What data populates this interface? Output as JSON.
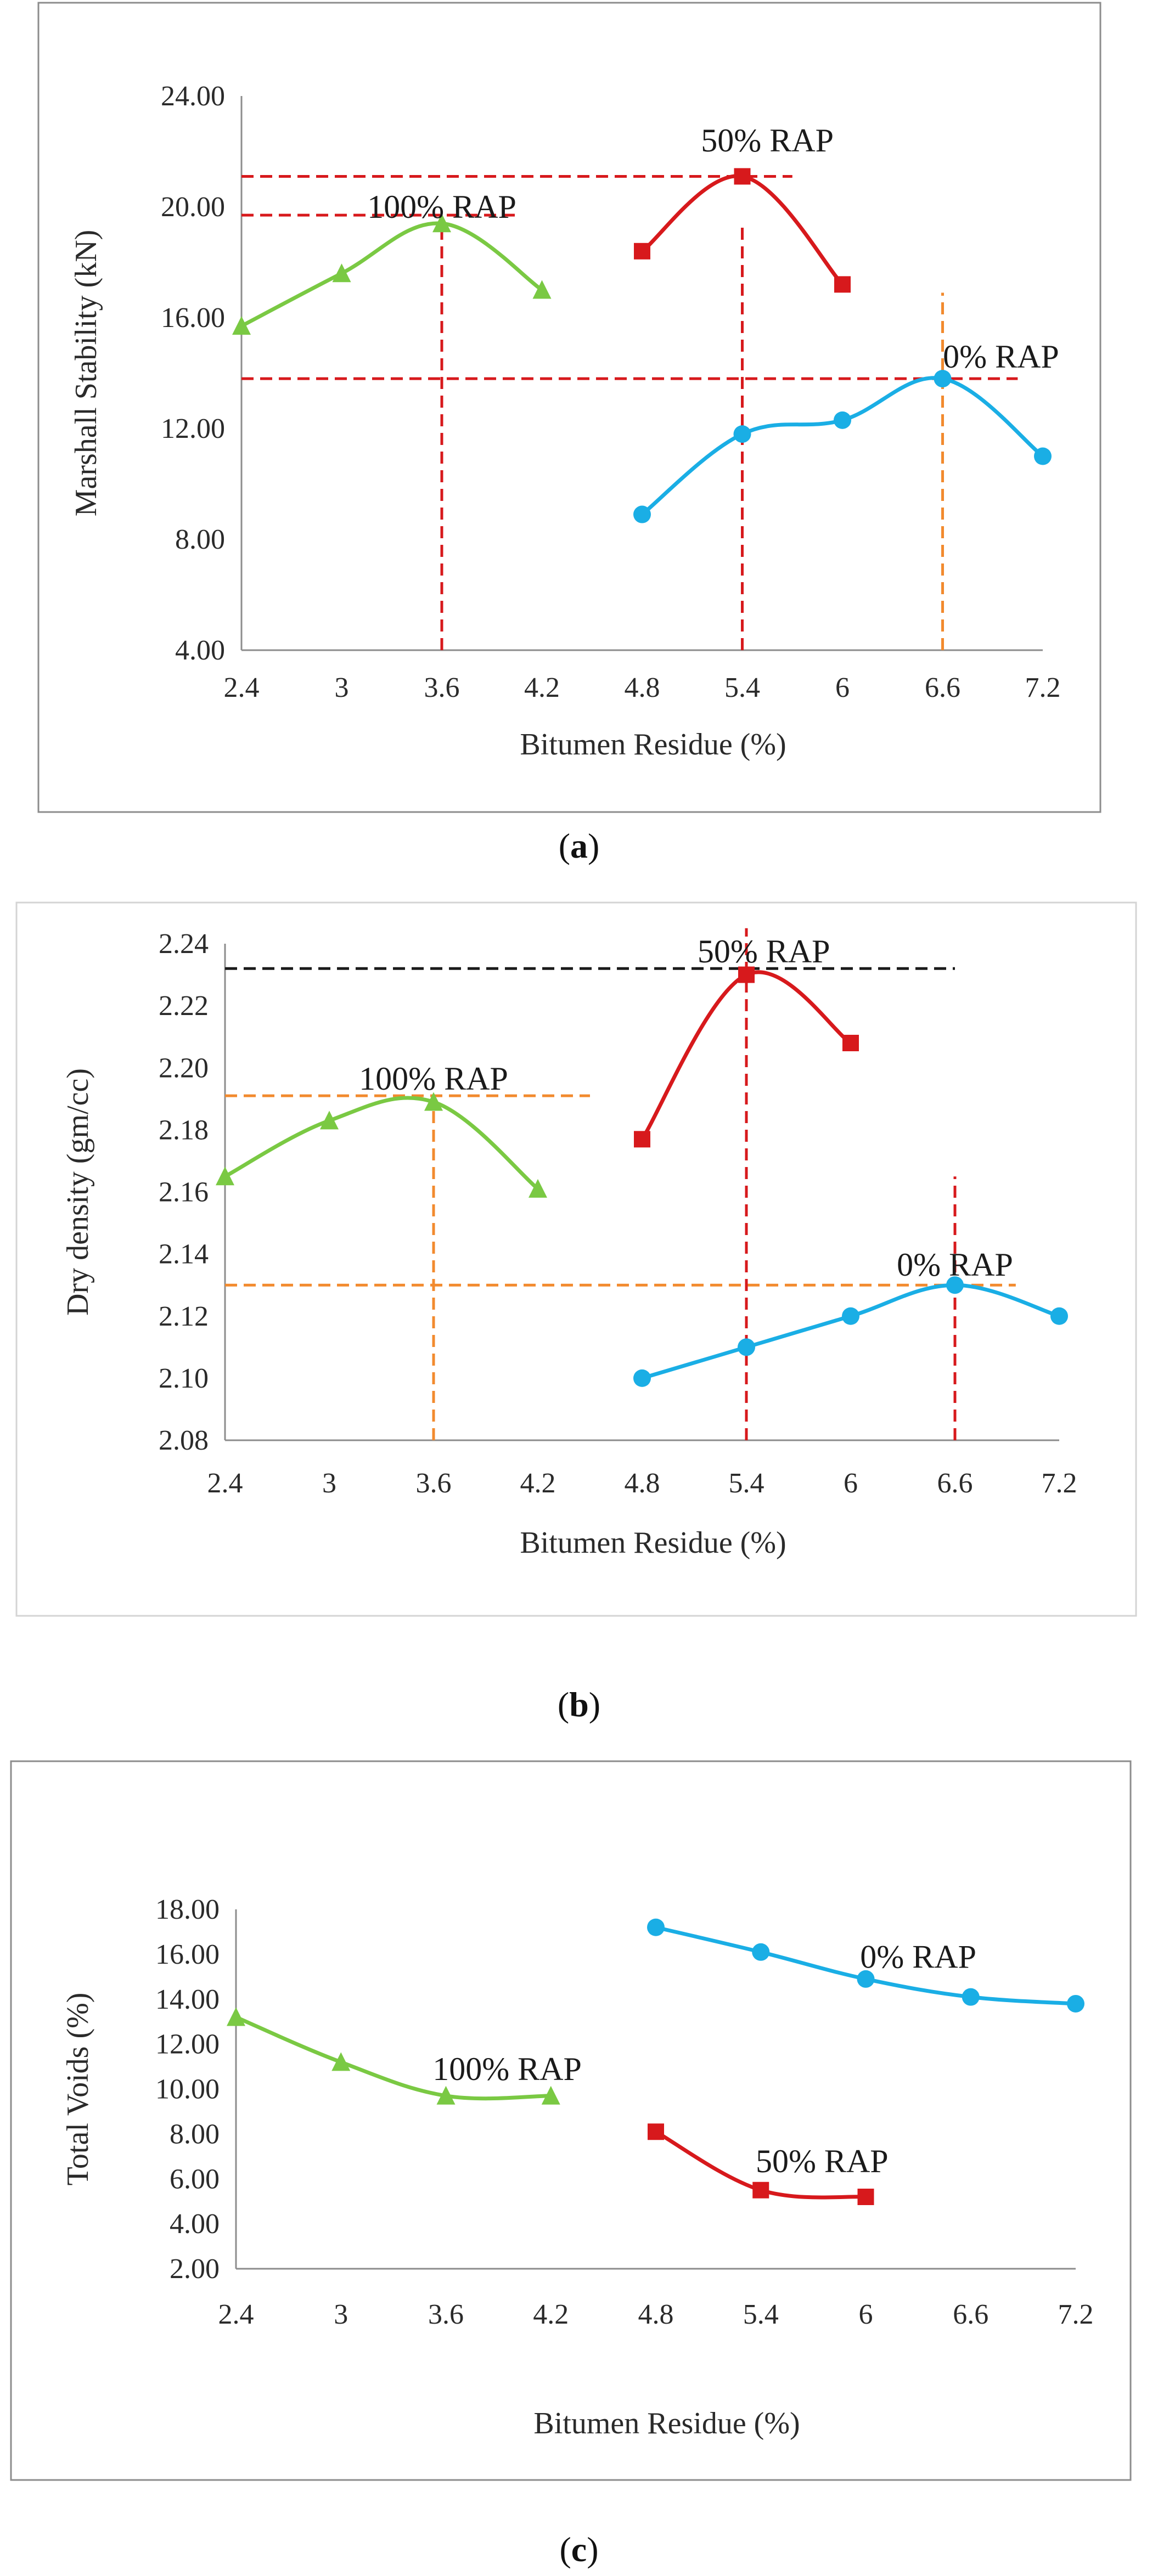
{
  "chart_data": [
    {
      "id": "a",
      "type": "line",
      "caption_letter": "a",
      "xlabel": "Bitumen Residue (%)",
      "ylabel": "Marshall Stability (kN)",
      "x_ticks": [
        "2.4",
        "3",
        "3.6",
        "4.2",
        "4.8",
        "5.4",
        "6",
        "6.6",
        "7.2"
      ],
      "y_ticks": [
        "4.00",
        "8.00",
        "12.00",
        "16.00",
        "20.00",
        "24.00"
      ],
      "xlim": [
        2.4,
        7.2
      ],
      "ylim": [
        4,
        24
      ],
      "series": [
        {
          "name": "100% RAP",
          "color": "#7ac943",
          "marker": "triangle",
          "x": [
            2.4,
            3.0,
            3.6,
            4.2
          ],
          "y": [
            15.7,
            17.6,
            19.4,
            17.0
          ]
        },
        {
          "name": "50% RAP",
          "color": "#d7191c",
          "marker": "square",
          "x": [
            4.8,
            5.4,
            6.0
          ],
          "y": [
            18.4,
            21.1,
            17.2
          ]
        },
        {
          "name": "0% RAP",
          "color": "#1aaee5",
          "marker": "circle",
          "x": [
            4.8,
            5.4,
            6.0,
            6.6,
            7.2
          ],
          "y": [
            8.9,
            11.8,
            12.3,
            13.8,
            11.0
          ]
        }
      ],
      "reference_lines": [
        {
          "orient": "h",
          "value": 21.1,
          "from": 2.4,
          "to": 5.7,
          "color": "#d7191c"
        },
        {
          "orient": "h",
          "value": 19.7,
          "from": 2.4,
          "to": 4.05,
          "color": "#d7191c"
        },
        {
          "orient": "h",
          "value": 13.8,
          "from": 2.4,
          "to": 7.05,
          "color": "#d7191c"
        },
        {
          "orient": "v",
          "value": 3.6,
          "from": 4,
          "to": 19.4,
          "color": "#d7191c"
        },
        {
          "orient": "v",
          "value": 5.4,
          "from": 4,
          "to": 19.4,
          "color": "#d7191c"
        },
        {
          "orient": "v",
          "value": 6.6,
          "from": 4,
          "to": 16.9,
          "color": "#f28a2e"
        }
      ],
      "annotations": [
        {
          "text": "100% RAP",
          "x": 3.6,
          "y": 19.6
        },
        {
          "text": "50% RAP",
          "x": 5.55,
          "y": 22.0
        },
        {
          "text": "0% RAP",
          "x": 6.95,
          "y": 14.2
        }
      ]
    },
    {
      "id": "b",
      "type": "line",
      "caption_letter": "b",
      "xlabel": "Bitumen Residue (%)",
      "ylabel": "Dry density (gm/cc)",
      "x_ticks": [
        "2.4",
        "3",
        "3.6",
        "4.2",
        "4.8",
        "5.4",
        "6",
        "6.6",
        "7.2"
      ],
      "y_ticks": [
        "2.08",
        "2.10",
        "2.12",
        "2.14",
        "2.16",
        "2.18",
        "2.20",
        "2.22",
        "2.24"
      ],
      "xlim": [
        2.4,
        7.2
      ],
      "ylim": [
        2.08,
        2.24
      ],
      "series": [
        {
          "name": "100% RAP",
          "color": "#7ac943",
          "marker": "triangle",
          "x": [
            2.4,
            3.0,
            3.6,
            4.2
          ],
          "y": [
            2.165,
            2.183,
            2.189,
            2.161
          ]
        },
        {
          "name": "50% RAP",
          "color": "#d7191c",
          "marker": "square",
          "x": [
            4.8,
            5.4,
            6.0
          ],
          "y": [
            2.177,
            2.23,
            2.208
          ]
        },
        {
          "name": "0% RAP",
          "color": "#1aaee5",
          "marker": "circle",
          "x": [
            4.8,
            5.4,
            6.0,
            6.6,
            7.2
          ],
          "y": [
            2.1,
            2.11,
            2.12,
            2.13,
            2.12
          ]
        }
      ],
      "reference_lines": [
        {
          "orient": "h",
          "value": 2.232,
          "from": 2.4,
          "to": 6.6,
          "color": "#1a1a1a"
        },
        {
          "orient": "h",
          "value": 2.191,
          "from": 2.4,
          "to": 4.5,
          "color": "#f28a2e"
        },
        {
          "orient": "h",
          "value": 2.13,
          "from": 2.4,
          "to": 6.95,
          "color": "#f28a2e"
        },
        {
          "orient": "v",
          "value": 3.6,
          "from": 2.08,
          "to": 2.189,
          "color": "#f28a2e"
        },
        {
          "orient": "v",
          "value": 5.4,
          "from": 2.08,
          "to": 2.245,
          "color": "#d7191c"
        },
        {
          "orient": "v",
          "value": 6.6,
          "from": 2.08,
          "to": 2.165,
          "color": "#d7191c"
        }
      ],
      "annotations": [
        {
          "text": "100% RAP",
          "x": 3.6,
          "y": 2.193
        },
        {
          "text": "50% RAP",
          "x": 5.5,
          "y": 2.234
        },
        {
          "text": "0% RAP",
          "x": 6.6,
          "y": 2.133
        }
      ]
    },
    {
      "id": "c",
      "type": "line",
      "caption_letter": "c",
      "xlabel": "Bitumen Residue (%)",
      "ylabel": "Total  Voids (%)",
      "x_ticks": [
        "2.4",
        "3",
        "3.6",
        "4.2",
        "4.8",
        "5.4",
        "6",
        "6.6",
        "7.2"
      ],
      "y_ticks": [
        "2.00",
        "4.00",
        "6.00",
        "8.00",
        "10.00",
        "12.00",
        "14.00",
        "16.00",
        "18.00"
      ],
      "xlim": [
        2.4,
        7.2
      ],
      "ylim": [
        2,
        18
      ],
      "series": [
        {
          "name": "100% RAP",
          "color": "#7ac943",
          "marker": "triangle",
          "x": [
            2.4,
            3.0,
            3.6,
            4.2
          ],
          "y": [
            13.2,
            11.2,
            9.7,
            9.7
          ]
        },
        {
          "name": "50% RAP",
          "color": "#d7191c",
          "marker": "square",
          "x": [
            4.8,
            5.4,
            6.0
          ],
          "y": [
            8.1,
            5.5,
            5.2
          ]
        },
        {
          "name": "0% RAP",
          "color": "#1aaee5",
          "marker": "circle",
          "x": [
            4.8,
            5.4,
            6.0,
            6.6,
            7.2
          ],
          "y": [
            17.2,
            16.1,
            14.9,
            14.1,
            13.8
          ]
        }
      ],
      "reference_lines": [],
      "annotations": [
        {
          "text": "100% RAP",
          "x": 3.95,
          "y": 10.4
        },
        {
          "text": "50% RAP",
          "x": 5.75,
          "y": 6.3
        },
        {
          "text": "0% RAP",
          "x": 6.3,
          "y": 15.4
        }
      ]
    }
  ]
}
